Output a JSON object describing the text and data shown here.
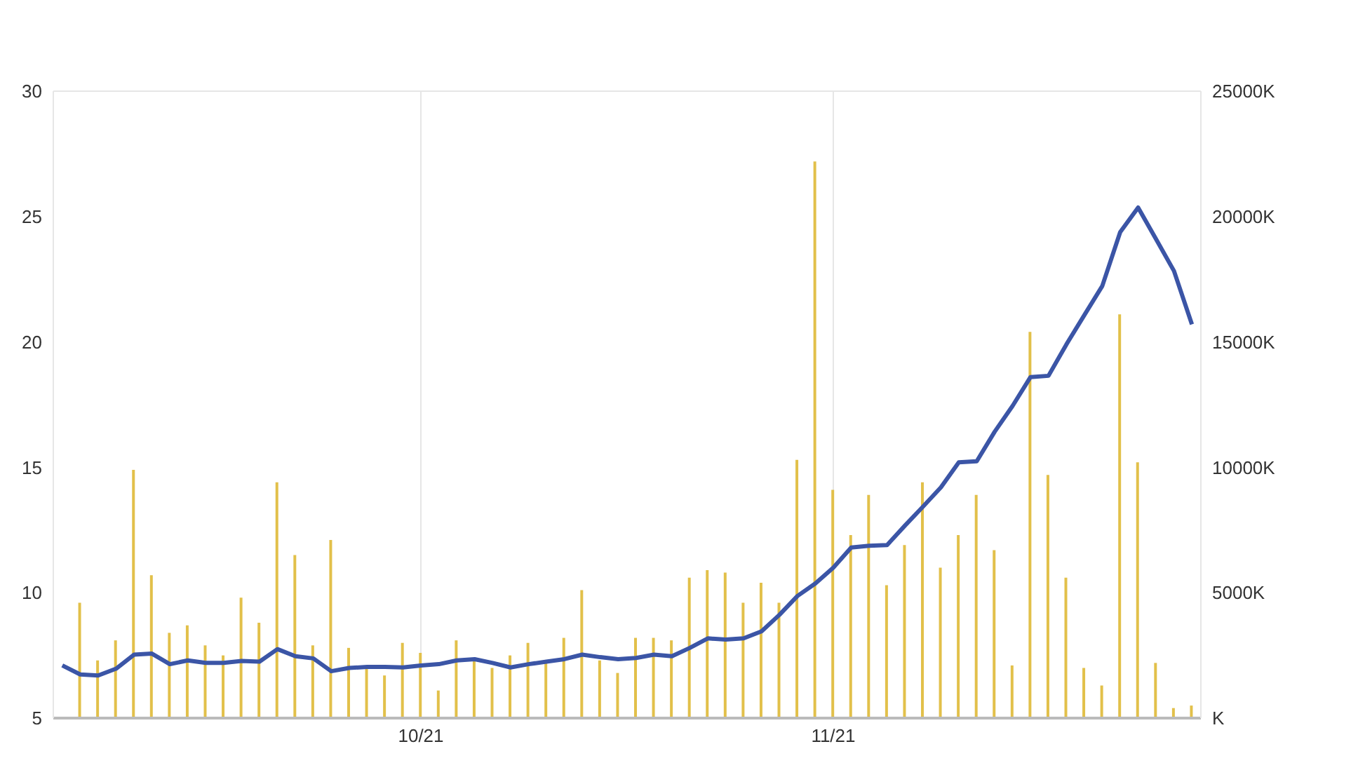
{
  "chart_data": {
    "type": "line",
    "categories": [
      null,
      null,
      null,
      null,
      null,
      null,
      null,
      null,
      null,
      null,
      null,
      null,
      null,
      null,
      null,
      null,
      null,
      null,
      null,
      null,
      "10/21",
      null,
      null,
      null,
      null,
      null,
      null,
      null,
      null,
      null,
      null,
      null,
      null,
      null,
      null,
      null,
      null,
      null,
      null,
      null,
      null,
      null,
      null,
      "11/21",
      null,
      null,
      null,
      null,
      null,
      null,
      null,
      null,
      null,
      null,
      null,
      null,
      null,
      null,
      null,
      null,
      null,
      null,
      null,
      null
    ],
    "series": [
      {
        "type": "bar",
        "axis": "y2",
        "color": "#e2c04a",
        "values": [
          null,
          4600,
          2300,
          3100,
          9900,
          5700,
          3400,
          3700,
          2900,
          2500,
          4800,
          3800,
          9400,
          6500,
          2900,
          7100,
          2800,
          2100,
          1700,
          3000,
          2600,
          1100,
          3100,
          2300,
          2000,
          2500,
          3000,
          2200,
          3200,
          5100,
          2300,
          1800,
          3200,
          3200,
          3100,
          5600,
          5900,
          5800,
          4600,
          5400,
          4600,
          10300,
          22200,
          9100,
          7300,
          8900,
          5300,
          6900,
          9400,
          6000,
          7300,
          8900,
          6700,
          2100,
          15400,
          9700,
          5600,
          2000,
          1300,
          16100,
          10200,
          2200,
          400,
          500
        ]
      },
      {
        "axis": "y",
        "color": "#3b55a6",
        "values": [
          7.1,
          6.74,
          6.7,
          6.97,
          7.53,
          7.57,
          7.15,
          7.3,
          7.2,
          7.2,
          7.28,
          7.25,
          7.75,
          7.47,
          7.38,
          6.87,
          7.0,
          7.04,
          7.04,
          7.02,
          7.1,
          7.15,
          7.3,
          7.35,
          7.2,
          7.02,
          7.15,
          7.25,
          7.35,
          7.53,
          7.43,
          7.35,
          7.4,
          7.53,
          7.47,
          7.8,
          8.18,
          8.13,
          8.18,
          8.46,
          9.12,
          9.87,
          10.37,
          11.0,
          11.8,
          11.87,
          11.9,
          12.68,
          13.43,
          14.2,
          15.2,
          15.24,
          16.42,
          17.45,
          18.6,
          18.65,
          19.9,
          21.07,
          22.23,
          24.38,
          25.36,
          24.1,
          22.83,
          20.7
        ]
      }
    ],
    "ylim": [
      5,
      30
    ],
    "yticks": [
      5,
      10,
      15,
      20,
      25,
      30
    ],
    "y2lim": [
      0,
      25000
    ],
    "y2ticks": [
      {
        "value": 0,
        "label": "K"
      },
      {
        "value": 5000,
        "label": "5000K"
      },
      {
        "value": 10000,
        "label": "10000K"
      },
      {
        "value": 15000,
        "label": "15000K"
      },
      {
        "value": 20000,
        "label": "20000K"
      },
      {
        "value": 25000,
        "label": "25000K"
      }
    ],
    "grid": true,
    "marker": "none"
  }
}
